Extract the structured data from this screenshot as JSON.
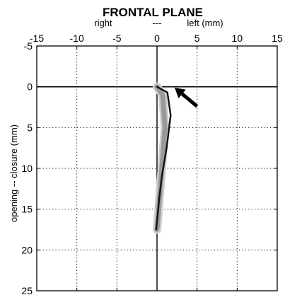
{
  "chart_data": {
    "type": "line",
    "title": "FRONTAL PLANE",
    "subtitle": {
      "left": "right",
      "middle": "---",
      "right": "left  (mm)"
    },
    "ylabel": "opening -- closure (mm)",
    "xlim": [
      -15,
      15
    ],
    "ylim": [
      -5,
      25
    ],
    "y_inverted": true,
    "x_axis_position": "top",
    "x_ticks": [
      -15,
      -10,
      -5,
      0,
      5,
      10,
      15
    ],
    "x_tick_labels": [
      "-15",
      "-10",
      "-5",
      "0",
      "5",
      "10",
      "15"
    ],
    "y_ticks": [
      -5,
      0,
      5,
      10,
      15,
      20,
      25
    ],
    "y_tick_labels": [
      "-5",
      "0",
      "5",
      "10",
      "15",
      "20",
      "25"
    ],
    "grid": "dotted",
    "zero_lines": true,
    "series": [
      {
        "style": "dark-solid",
        "x": [
          0,
          1.3,
          1.7,
          1.2,
          0.6,
          0.3,
          0.1,
          -0.1
        ],
        "y": [
          0,
          0.7,
          3.5,
          7.5,
          11,
          13.5,
          15.5,
          17.5
        ]
      },
      {
        "style": "grey-band",
        "x": [
          0,
          0.7,
          1.0,
          0.6,
          0.2,
          0.0
        ],
        "y": [
          0,
          1,
          5,
          10,
          15,
          17.5
        ]
      }
    ],
    "annotations": [
      {
        "type": "arrow",
        "from": [
          5,
          2.4
        ],
        "to": [
          2.2,
          0.1
        ],
        "color": "#000000"
      }
    ],
    "colors": {
      "line": "#111111",
      "band": "#9a9a9a",
      "band_light": "#cfcfcf"
    }
  }
}
